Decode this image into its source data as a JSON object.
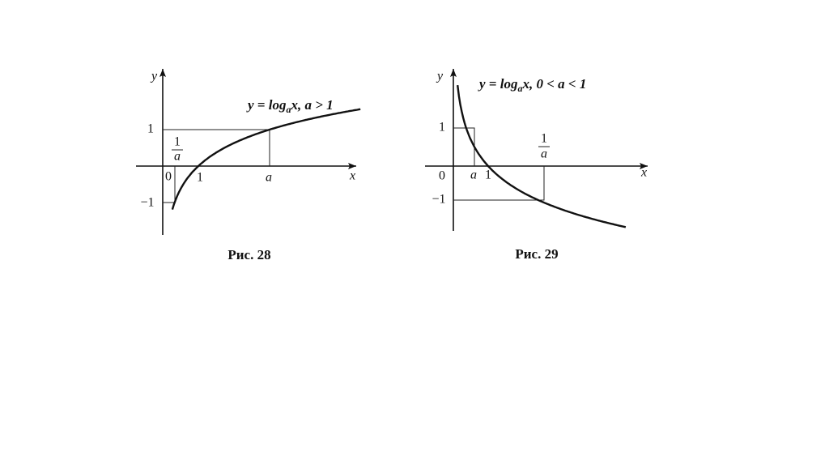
{
  "fig28": {
    "y_label": "y",
    "x_label": "x",
    "y_tick_pos": "1",
    "y_tick_neg": "−1",
    "origin": "0",
    "x_tick_one": "1",
    "x_tick_a": "a",
    "fraction": {
      "numerator": "1",
      "denominator": "a"
    },
    "equation": {
      "prefix": "y = log",
      "base": "a",
      "suffix": "x, a > 1"
    },
    "caption": "Рис. 28"
  },
  "fig29": {
    "y_label": "y",
    "x_label": "x",
    "y_tick_pos": "1",
    "y_tick_neg": "−1",
    "origin": "0",
    "x_tick_a": "a",
    "x_tick_one": "1",
    "fraction": {
      "numerator": "1",
      "denominator": "a"
    },
    "equation": {
      "prefix": "y = log",
      "base": "a",
      "suffix": "x, 0 < a < 1"
    },
    "caption": "Рис. 29"
  }
}
